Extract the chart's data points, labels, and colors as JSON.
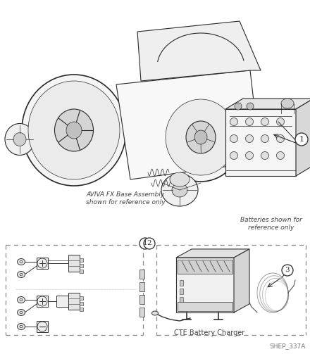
{
  "bg_color": "#ffffff",
  "fig_width": 4.4,
  "fig_height": 5.03,
  "dpi": 100,
  "text_aviva_line1": "AVIVA FX Base Assembly",
  "text_aviva_line2": "shown for reference only",
  "text_batteries_line1": "Batteries shown for",
  "text_batteries_line2": "reference only",
  "text_cte": "CTE Battery Charger",
  "text_shep": "SHEP_337A",
  "gray_light": "#f2f2f2",
  "gray_medium": "#bbbbbb",
  "gray_dark": "#666666",
  "gray_text": "#444444",
  "dash_color": "#888888",
  "line_color": "#2a2a2a",
  "sketch_gray": "#c8c8c8"
}
